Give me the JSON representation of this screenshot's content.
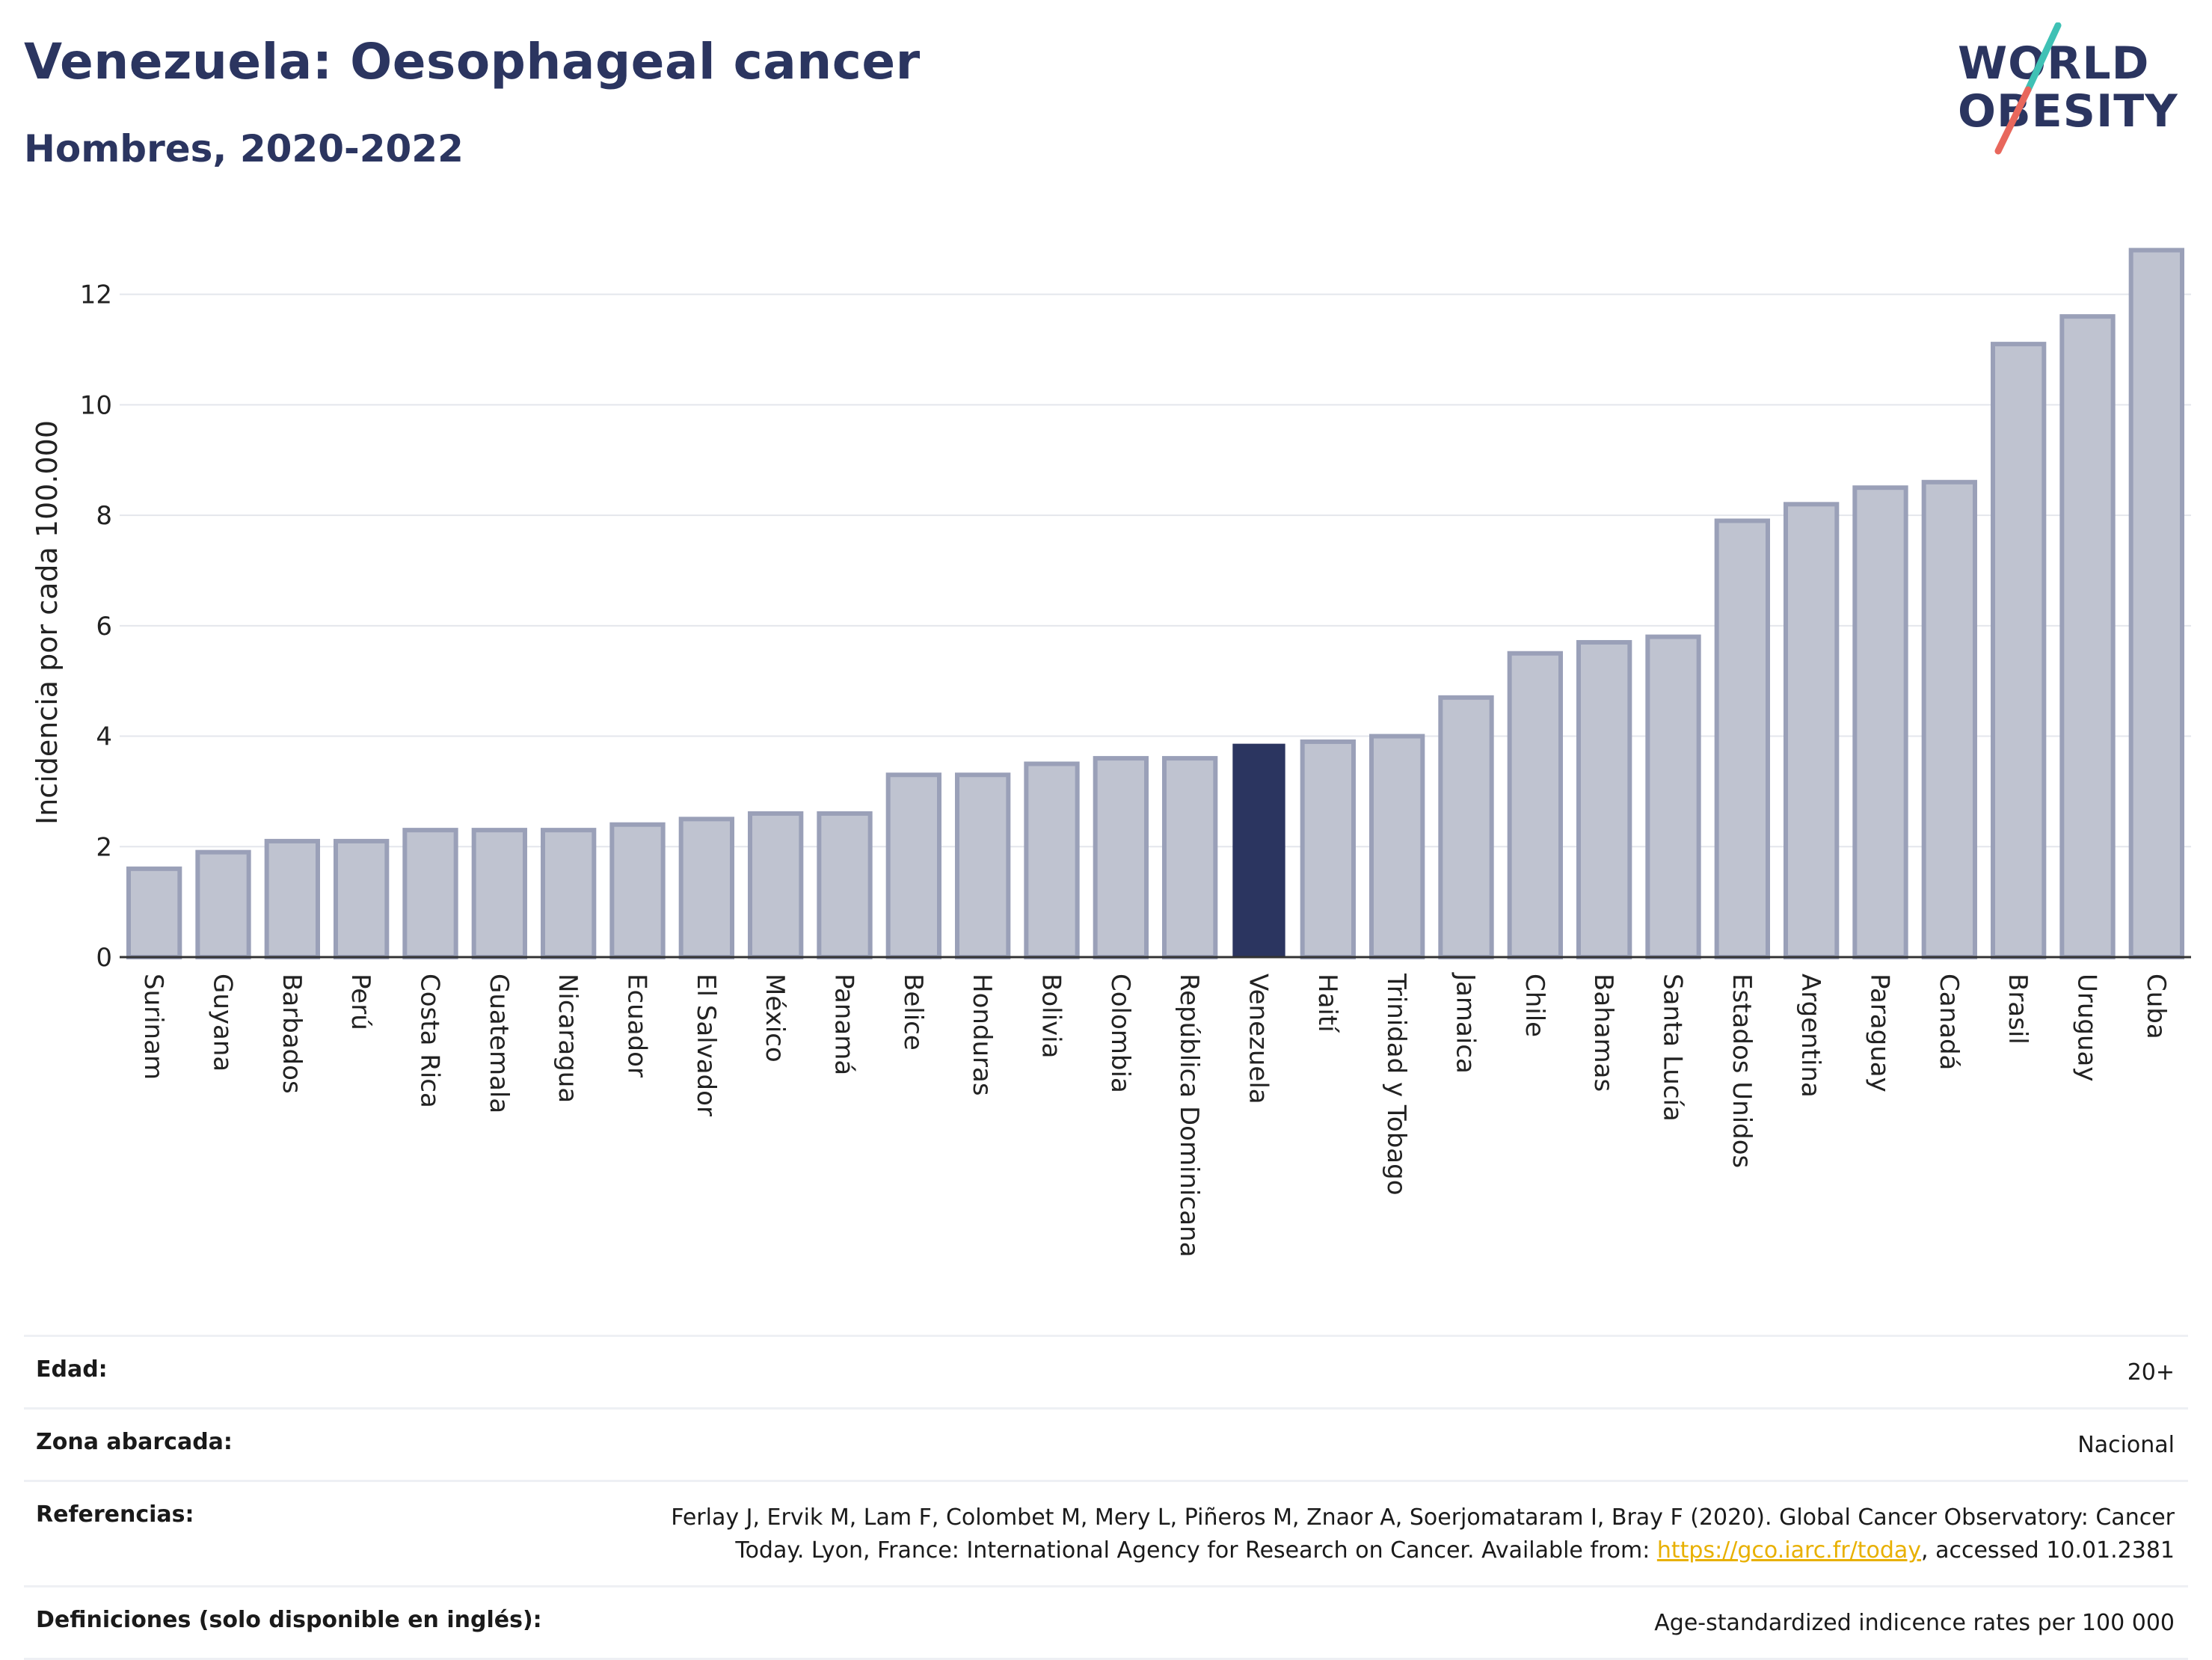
{
  "header": {
    "title": "Venezuela: Oesophageal cancer",
    "subtitle": "Hombres, 2020-2022"
  },
  "logo": {
    "line1": "WORLD",
    "line2": "OBESITY",
    "text_color": "#2b3560",
    "slash_colors": [
      "#3fc1b5",
      "#e8675c"
    ]
  },
  "chart_data": {
    "type": "bar",
    "categories": [
      "Surinam",
      "Guyana",
      "Barbados",
      "Perú",
      "Costa Rica",
      "Guatemala",
      "Nicaragua",
      "Ecuador",
      "El Salvador",
      "México",
      "Panamá",
      "Belice",
      "Honduras",
      "Bolivia",
      "Colombia",
      "República Dominicana",
      "Venezuela",
      "Haití",
      "Trinidad y Tobago",
      "Jamaica",
      "Chile",
      "Bahamas",
      "Santa Lucía",
      "Estados Unidos",
      "Argentina",
      "Paraguay",
      "Canadá",
      "Brasil",
      "Uruguay",
      "Cuba"
    ],
    "values": [
      1.6,
      1.9,
      2.1,
      2.1,
      2.3,
      2.3,
      2.3,
      2.4,
      2.5,
      2.6,
      2.6,
      3.3,
      3.3,
      3.5,
      3.6,
      3.6,
      3.85,
      3.9,
      4.0,
      4.7,
      5.5,
      5.7,
      5.8,
      7.9,
      8.2,
      8.5,
      8.6,
      11.1,
      11.6,
      12.8
    ],
    "highlight": "Venezuela",
    "xlabel": "",
    "ylabel": "Incidencia por cada 100.000",
    "ylim": [
      0,
      13.2
    ],
    "yticks": [
      0,
      2,
      4,
      6,
      8,
      10,
      12
    ],
    "grid": true,
    "colors": {
      "bar_fill": "#bfc3d0",
      "bar_stroke": "#9aa0b8",
      "highlight": "#2b3560",
      "grid": "#e4e6ec",
      "axis": "#333333"
    }
  },
  "info": {
    "edad_label": "Edad:",
    "edad_value": "20+",
    "zona_label": "Zona abarcada:",
    "zona_value": "Nacional",
    "ref_label": "Referencias:",
    "ref_text_line1": "Ferlay J, Ervik M, Lam F, Colombet M, Mery L, Piñeros M, Znaor A, Soerjomataram I, Bray F (2020). Global Cancer Observatory: Cancer",
    "ref_text_line2_pre": "Today. Lyon, France: International Agency for Research on Cancer. Available from: ",
    "ref_link": "https://gco.iarc.fr/today",
    "ref_text_line2_post": ", accessed 10.01.2381",
    "def_label": "Definiciones (solo disponible en inglés):",
    "def_value": "Age-standardized indicence rates per 100 000"
  }
}
